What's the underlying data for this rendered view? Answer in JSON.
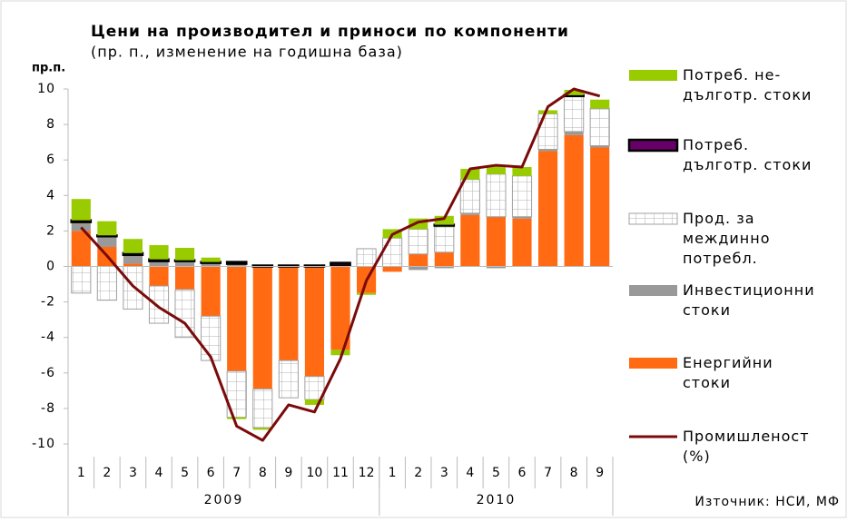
{
  "chart_data": {
    "type": "stacked-bar-line",
    "title": "Цени на производител и приноси по компоненти",
    "subtitle": "(пр. п., изменение на годишна база)",
    "ylabel": "пр.п.",
    "source": "Източник: НСИ, МФ",
    "groups": [
      {
        "label": "2009",
        "categories": [
          "1",
          "2",
          "3",
          "4",
          "5",
          "6",
          "7",
          "8",
          "9",
          "10",
          "11",
          "12"
        ]
      },
      {
        "label": "2010",
        "categories": [
          "1",
          "2",
          "3",
          "4",
          "5",
          "6",
          "7",
          "8",
          "9"
        ]
      }
    ],
    "ylim": [
      -10,
      10
    ],
    "yticks": [
      -10,
      -8,
      -6,
      -4,
      -2,
      0,
      2,
      4,
      6,
      8,
      10
    ],
    "series": [
      {
        "name": "Енергийни\nстоки",
        "color": "#ff6a13",
        "kind": "bar",
        "values": [
          2.0,
          1.1,
          0.15,
          -1.1,
          -1.3,
          -2.8,
          -5.9,
          -6.9,
          -5.3,
          -6.2,
          -4.7,
          -1.5,
          -0.3,
          0.7,
          0.8,
          2.9,
          2.8,
          2.7,
          6.5,
          7.4,
          6.7
        ]
      },
      {
        "name": "Инвестиционни\nстоки",
        "color": "#999999",
        "kind": "bar",
        "values": [
          0.5,
          0.6,
          0.5,
          0.3,
          0.3,
          0.2,
          0.15,
          0,
          0,
          0,
          0.05,
          0,
          0,
          -0.2,
          -0.1,
          0.1,
          -0.1,
          0.1,
          0.1,
          0.2,
          0.1
        ]
      },
      {
        "name": "Прод. за\nмеждинно\nпотребл.",
        "color": "pattern",
        "kind": "bar",
        "values": [
          -1.5,
          -1.9,
          -2.4,
          -2.1,
          -2.7,
          -2.5,
          -2.6,
          -2.2,
          -2.1,
          -1.3,
          0,
          1.0,
          1.6,
          1.4,
          1.5,
          1.9,
          2.4,
          2.3,
          2.0,
          2.0,
          2.1
        ]
      },
      {
        "name": "Потреб.\nдълготр. стоки",
        "color": "#660066",
        "kind": "bar",
        "values": [
          0.1,
          0.05,
          0.1,
          0.1,
          0.05,
          0.05,
          0.1,
          0.05,
          0.05,
          0.05,
          0.15,
          0,
          0,
          0,
          0.05,
          0,
          0,
          0,
          0,
          0.05,
          0
        ]
      },
      {
        "name": "Потреб. не-\nдълготр. стоки",
        "color": "#99cc00",
        "kind": "bar",
        "values": [
          1.2,
          0.8,
          0.8,
          0.8,
          0.7,
          0.25,
          -0.1,
          -0.1,
          0,
          -0.3,
          -0.3,
          -0.1,
          0.5,
          0.6,
          0.5,
          0.6,
          0.5,
          0.5,
          0.2,
          0.3,
          0.5
        ]
      },
      {
        "name": "Промишленост\n(%)",
        "color": "#7b0a0a",
        "kind": "line",
        "values": [
          2.2,
          0.6,
          -1.1,
          -2.3,
          -3.2,
          -5.1,
          -9.0,
          -9.8,
          -7.8,
          -8.2,
          -5.2,
          -0.8,
          1.8,
          2.5,
          2.7,
          5.5,
          5.7,
          5.6,
          9.0,
          10.0,
          9.6
        ]
      }
    ]
  }
}
